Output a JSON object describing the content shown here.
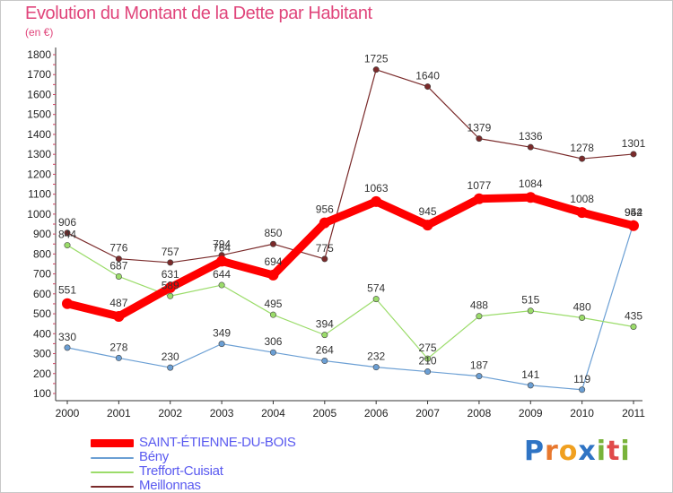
{
  "header": {
    "title": "Evolution du Montant de la Dette par Habitant",
    "subtitle": "(en €)"
  },
  "colors": {
    "title": "#e0457b",
    "axis": "#333333",
    "grid_ticks": "#d04060"
  },
  "logo": {
    "text": "Proxiti",
    "letters": [
      "P",
      "r",
      "o",
      "x",
      "i",
      "t",
      "i"
    ],
    "colors": [
      "#2f74c4",
      "#e8782e",
      "#f0a020",
      "#2f74c4",
      "#79b33a",
      "#e04a4a",
      "#79b33a"
    ]
  },
  "chart_data": {
    "type": "line",
    "categories": [
      "2000",
      "2001",
      "2002",
      "2003",
      "2004",
      "2005",
      "2006",
      "2007",
      "2008",
      "2009",
      "2010",
      "2011"
    ],
    "ylim": [
      100,
      1800
    ],
    "yticks": [
      100,
      200,
      300,
      400,
      500,
      600,
      700,
      800,
      900,
      1000,
      1100,
      1200,
      1300,
      1400,
      1500,
      1600,
      1700,
      1800
    ],
    "legend_position": "bottom-left",
    "series": [
      {
        "name": "SAINT-ÉTIENNE-DU-BOIS",
        "color": "#ff0000",
        "values": [
          551,
          487,
          631,
          764,
          694,
          956,
          1063,
          945,
          1077,
          1084,
          1008,
          942
        ],
        "labels": [
          "551",
          "487",
          "631",
          "764",
          "694",
          "956",
          "1063",
          "945",
          "1077",
          "1084",
          "1008",
          "942"
        ]
      },
      {
        "name": "Bény",
        "color": "#6b9fd4",
        "values": [
          330,
          278,
          230,
          349,
          306,
          264,
          232,
          210,
          187,
          141,
          119,
          954
        ],
        "labels": [
          "330",
          "278",
          "230",
          "349",
          "306",
          "264",
          "232",
          "210",
          "187",
          "141",
          "119",
          "954"
        ]
      },
      {
        "name": "Treffort-Cuisiat",
        "color": "#9bdc6a",
        "values": [
          844,
          687,
          589,
          644,
          495,
          394,
          574,
          275,
          488,
          515,
          480,
          435
        ],
        "labels": [
          "844",
          "687",
          "589",
          "644",
          "495",
          "394",
          "574",
          "275",
          "488",
          "515",
          "480",
          "435"
        ]
      },
      {
        "name": "Meillonnas",
        "color": "#7a2a2a",
        "values": [
          906,
          776,
          757,
          794,
          850,
          775,
          1725,
          1640,
          1379,
          1336,
          1278,
          1301
        ],
        "labels": [
          "906",
          "776",
          "757",
          "794",
          "850",
          "775",
          "1725",
          "1640",
          "1379",
          "1336",
          "1278",
          "1301"
        ]
      }
    ]
  }
}
